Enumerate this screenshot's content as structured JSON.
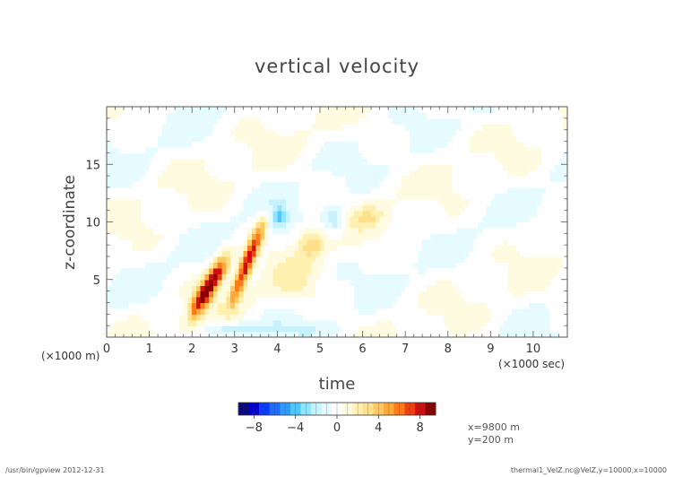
{
  "title": "vertical velocity",
  "footer": {
    "left": "/usr/bin/gpview   2012-12-31",
    "right": "thermal1_VelZ.nc@VelZ,y=10000,x=10000"
  },
  "info": [
    "x=9800 m",
    "y=200 m"
  ],
  "colors": {
    "palette": [
      "#0a0a7a",
      "#0000c8",
      "#0a3cff",
      "#1f6bff",
      "#2e9cff",
      "#4fc8ff",
      "#8fe4ff",
      "#c6f2ff",
      "#e6fbff",
      "#ffffff",
      "#fffbe0",
      "#fff0b0",
      "#ffe08a",
      "#ffc860",
      "#ffaa3a",
      "#ff7a1a",
      "#f04010",
      "#d01010",
      "#8a0000"
    ]
  },
  "chart_data": {
    "type": "heatmap",
    "title": "vertical velocity",
    "xlabel": "time",
    "ylabel": "z-coordinate",
    "x_unit": "(×1000 sec)",
    "y_unit": "(×1000 m)",
    "xlim": [
      0,
      10.8
    ],
    "ylim": [
      0,
      20
    ],
    "x_ticks": [
      0,
      1,
      2,
      3,
      4,
      5,
      6,
      7,
      8,
      9,
      10
    ],
    "y_ticks": [
      5,
      10,
      15
    ],
    "colorbar": {
      "ticks": [
        -8,
        -4,
        0,
        4,
        8
      ],
      "range": [
        -9.5,
        9.5
      ],
      "step": 1
    },
    "features": [
      {
        "name": "updraft-band-1",
        "x_start": 1.9,
        "z_start": 1.5,
        "x_end": 2.9,
        "z_end": 7.2,
        "max_value": 9
      },
      {
        "name": "updraft-band-2",
        "x_start": 2.8,
        "z_start": 2.5,
        "x_end": 3.7,
        "z_end": 10.5,
        "max_value": 8
      },
      {
        "name": "downdraft-10km",
        "x": 4.1,
        "z": 10.5,
        "min_value": -4
      },
      {
        "name": "updraft-7km",
        "x": 4.8,
        "z": 8.5,
        "max_value": 3
      },
      {
        "name": "downdraft-11km",
        "x": 5.3,
        "z": 10,
        "min_value": -3
      },
      {
        "name": "updraft-10km",
        "x": 6.3,
        "z": 11,
        "max_value": 2
      }
    ]
  }
}
